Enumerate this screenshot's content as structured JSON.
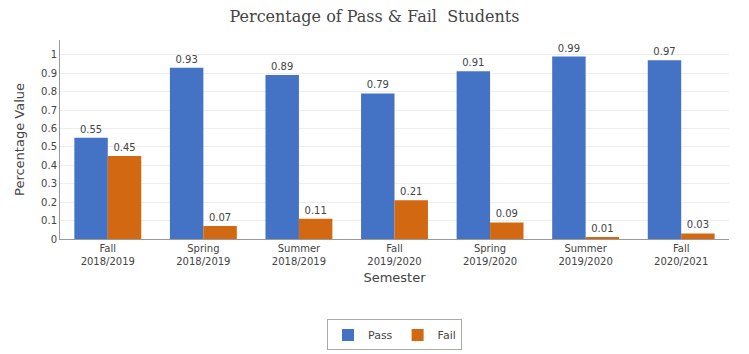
{
  "chart_data": {
    "type": "bar",
    "title": "Percentage of Pass & Fail  Students",
    "xlabel": "Semester",
    "ylabel": "Percentage Value",
    "categories": [
      "Fall\n2018/2019",
      "Spring\n2018/2019",
      "Summer\n2018/2019",
      "Fall\n2019/2020",
      "Spring\n2019/2020",
      "Summer\n2019/2020",
      "Fall\n2020/2021"
    ],
    "series": [
      {
        "name": "Pass",
        "color": "#4472C4",
        "values": [
          0.55,
          0.93,
          0.89,
          0.79,
          0.91,
          0.99,
          0.97
        ]
      },
      {
        "name": "Fail",
        "color": "#D26811",
        "values": [
          0.45,
          0.07,
          0.11,
          0.21,
          0.09,
          0.01,
          0.03
        ]
      }
    ],
    "ylim": [
      0,
      1.08
    ],
    "yticks": [
      0,
      0.1,
      0.2,
      0.3,
      0.4,
      0.5,
      0.6,
      0.7,
      0.8,
      0.9,
      1
    ],
    "grid": true,
    "legend": "bottom",
    "data_labels": true
  }
}
